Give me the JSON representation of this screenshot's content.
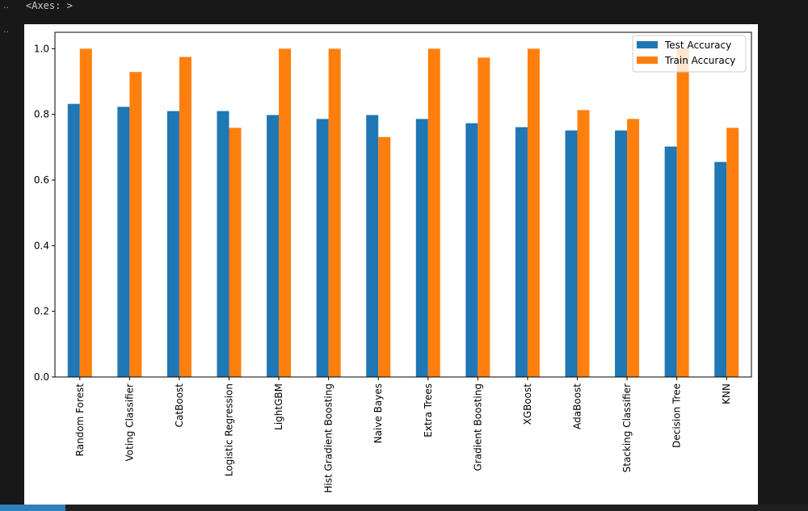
{
  "output": {
    "repr": "<Axes: >",
    "gutter_marks": [
      "..",
      ".."
    ]
  },
  "chart_data": {
    "type": "bar",
    "title": "",
    "xlabel": "",
    "ylabel": "",
    "ylim": [
      0,
      1.05
    ],
    "yticks": [
      "0.0",
      "0.2",
      "0.4",
      "0.6",
      "0.8",
      "1.0"
    ],
    "grid": false,
    "legend_position": "top-right",
    "categories": [
      "Random Forest",
      "Voting Classifier",
      "CatBoost",
      "Logistic Regression",
      "LightGBM",
      "Hist Gradient Boosting",
      "Naive Bayes",
      "Extra Trees",
      "Gradient Boosting",
      "XGBoost",
      "AdaBoost",
      "Stacking Classifier",
      "Decision Tree",
      "KNN"
    ],
    "series": [
      {
        "name": "Test Accuracy",
        "color": "#1f77b4",
        "values": [
          0.832,
          0.823,
          0.81,
          0.81,
          0.798,
          0.786,
          0.798,
          0.786,
          0.773,
          0.761,
          0.751,
          0.751,
          0.702,
          0.655
        ]
      },
      {
        "name": "Train Accuracy",
        "color": "#ff7f0e",
        "values": [
          1.0,
          0.929,
          0.975,
          0.759,
          1.0,
          1.0,
          0.731,
          1.0,
          0.973,
          1.0,
          0.813,
          0.786,
          1.0,
          0.759
        ]
      }
    ]
  }
}
